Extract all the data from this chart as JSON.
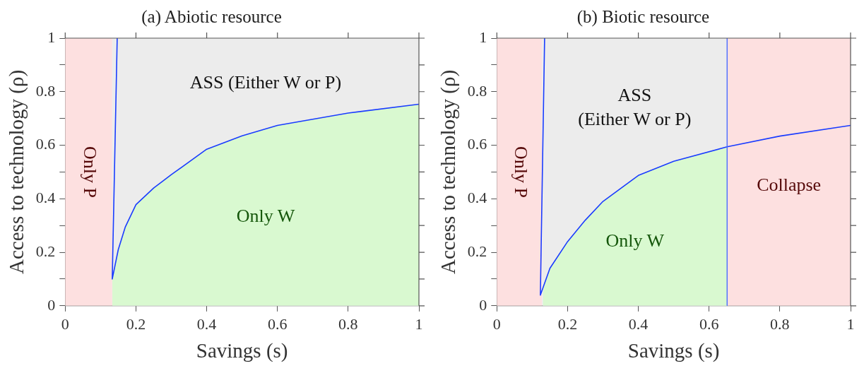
{
  "chart_data": [
    {
      "type": "line",
      "title": "(a) Abiotic resource",
      "xlabel": "Savings (s)",
      "ylabel": "Access to technology (ρ)",
      "series": [
        {
          "type": "area",
          "name": "Only W",
          "color": "#d9f9d0",
          "x": [
            0.133,
            0.15,
            0.17,
            0.2,
            0.25,
            0.3,
            0.4,
            0.5,
            0.6,
            0.8,
            1
          ],
          "values": [
            0.1,
            0.21,
            0.295,
            0.378,
            0.44,
            0.49,
            0.585,
            0.635,
            0.674,
            0.72,
            0.753
          ]
        },
        {
          "color": "#1a3cff",
          "x": [
            0.147,
            0.133,
            0.15,
            0.17,
            0.2,
            0.25,
            0.3,
            0.4,
            0.5,
            0.6,
            0.8,
            1
          ],
          "values": [
            1,
            0.1,
            0.21,
            0.295,
            0.378,
            0.44,
            0.49,
            0.585,
            0.635,
            0.674,
            0.72,
            0.753
          ]
        }
      ],
      "bands": [
        {
          "axis": "x",
          "from": 0,
          "to": 0.133,
          "color": "#fde0e0",
          "label": "Only P"
        },
        {
          "axis": "x",
          "from": 0.133,
          "to": 1,
          "color": "#ececec",
          "label": "ASS (Either W or P)"
        }
      ],
      "xlim": [
        0,
        1
      ],
      "ylim": [
        0,
        1
      ],
      "xticks": [
        0,
        0.2,
        0.4,
        0.6,
        0.8,
        1
      ],
      "yticks": [
        0,
        {
          "value": 0.1,
          "label": null
        },
        0.2,
        {
          "value": 0.3,
          "label": null
        },
        0.4,
        {
          "value": 0.5,
          "label": null
        },
        0.6,
        {
          "value": 0.7,
          "label": null
        },
        0.8,
        {
          "value": 0.9,
          "label": null
        },
        1
      ],
      "marker": "none",
      "line_style": "solid",
      "legend": false,
      "grid": false
    },
    {
      "type": "line",
      "title": "(b) Biotic resource",
      "xlabel": "Savings (s)",
      "ylabel": "Access to technology (ρ)",
      "series": [
        {
          "type": "area",
          "name": "Only W",
          "color": "#d9f9d0",
          "x": [
            0.13,
            0.15,
            0.2,
            0.25,
            0.3,
            0.4,
            0.5,
            0.651,
            0.651
          ],
          "values": [
            0.06,
            0.14,
            0.24,
            0.32,
            0.39,
            0.487,
            0.54,
            0.594,
            0
          ]
        },
        {
          "color": "#1a3cff",
          "x": [
            0.135,
            0.123,
            0.15,
            0.2,
            0.25,
            0.3,
            0.4,
            0.5,
            0.651,
            0.8,
            1
          ],
          "values": [
            1,
            0.04,
            0.14,
            0.24,
            0.32,
            0.39,
            0.487,
            0.54,
            0.594,
            0.634,
            0.674
          ]
        }
      ],
      "bands": [
        {
          "axis": "x",
          "from": 0,
          "to": 0.128,
          "color": "#fde0e0",
          "label": "Only P"
        },
        {
          "axis": "x",
          "from": 0.128,
          "to": 0.651,
          "color": "#ececec",
          "label": "ASS\n(Either W or P)"
        },
        {
          "axis": "x",
          "from": 0.651,
          "to": 1,
          "color": "#fde0e0",
          "label": "Collapse"
        }
      ],
      "ref_lines": [
        {
          "axis": "x",
          "value": 0.651,
          "color": "#4a6cff"
        }
      ],
      "xlim": [
        0,
        1
      ],
      "ylim": [
        0,
        1
      ],
      "xticks": [
        0,
        0.2,
        0.4,
        0.6,
        0.8,
        1
      ],
      "yticks": [
        0,
        {
          "value": 0.1,
          "label": null
        },
        0.2,
        {
          "value": 0.3,
          "label": null
        },
        0.4,
        {
          "value": 0.5,
          "label": null
        },
        0.6,
        {
          "value": 0.7,
          "label": null
        },
        0.8,
        {
          "value": 0.9,
          "label": null
        },
        1
      ],
      "marker": "none",
      "line_style": "solid",
      "legend": false,
      "grid": false
    }
  ]
}
